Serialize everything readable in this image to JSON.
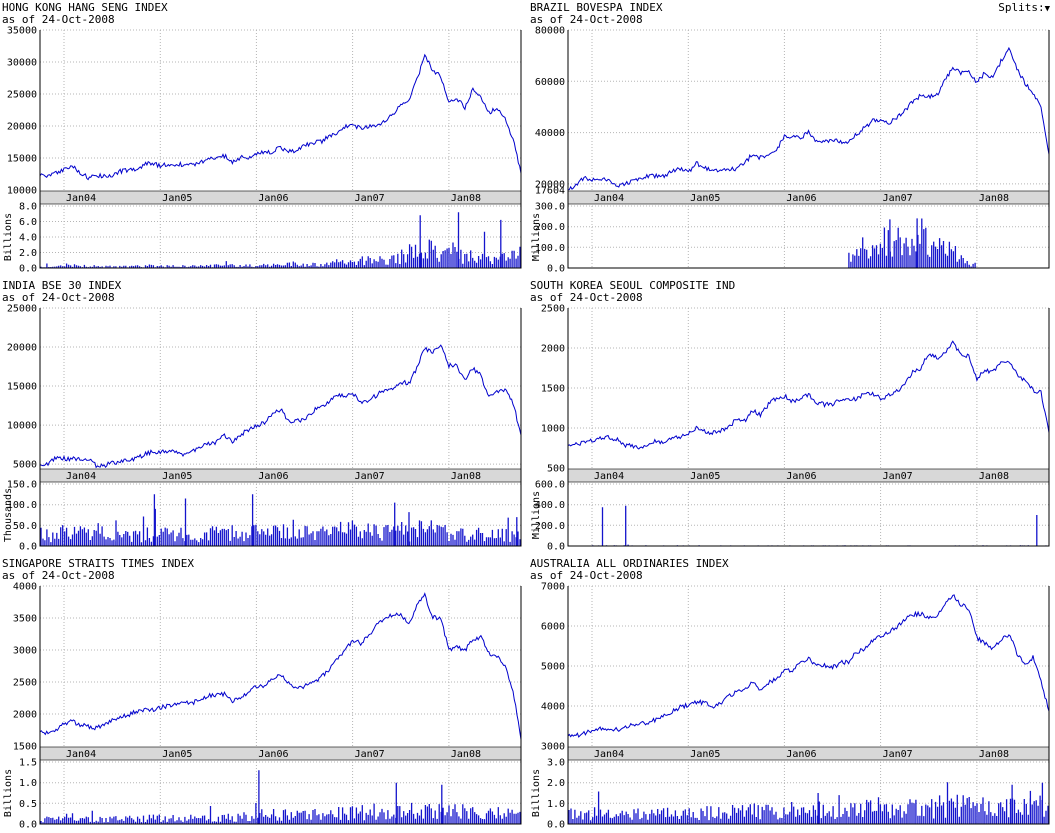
{
  "page": {
    "splits_label": "Splits:",
    "splits_arrow": "▼"
  },
  "colors": {
    "line": "#0000cc",
    "volume": "#1414cc",
    "grid": "#b5b5b5",
    "band": "#d8d8d8",
    "axis": "#000000"
  },
  "chart_data": [
    {
      "type": "line",
      "title": "HONG KONG HANG SENG INDEX",
      "as_of": "as of 24-Oct-2008",
      "x_ticks": [
        "Jan04",
        "Jan05",
        "Jan06",
        "Jan07",
        "Jan08"
      ],
      "tick_months": [
        3,
        15,
        27,
        39,
        51
      ],
      "seed": 11,
      "price": {
        "ylim": [
          10000,
          35000
        ],
        "yticks": [
          10000,
          15000,
          20000,
          25000,
          30000,
          35000
        ],
        "ytick_labels": [
          "10000",
          "15000",
          "20000",
          "25000",
          "30000",
          "35000"
        ],
        "monthly": [
          12200,
          12350,
          12600,
          13300,
          13900,
          12700,
          11900,
          12150,
          12300,
          12200,
          12900,
          13100,
          13100,
          13950,
          14250,
          13700,
          14150,
          13900,
          14050,
          13900,
          14200,
          14900,
          15000,
          15350,
          14400,
          15100,
          14900,
          15700,
          15900,
          15850,
          16700,
          15900,
          16300,
          16950,
          17400,
          17500,
          18300,
          18950,
          19950,
          20100,
          19600,
          19800,
          20300,
          20650,
          21800,
          23200,
          23950,
          27150,
          31000,
          28650,
          27800,
          23500,
          24350,
          22850,
          25700,
          24500,
          22100,
          22700,
          21300,
          18000,
          12600
        ]
      },
      "volume": {
        "unit": "Billions",
        "ylim": [
          0,
          8
        ],
        "yticks": [
          0,
          2,
          4,
          6,
          8
        ],
        "ytick_labels": [
          "0.0",
          "2.0",
          "4.0",
          "6.0",
          "8.0"
        ],
        "monthly": [
          0.25,
          0.3,
          0.3,
          0.45,
          0.4,
          0.35,
          0.3,
          0.25,
          0.25,
          0.22,
          0.25,
          0.3,
          0.3,
          0.35,
          0.3,
          0.3,
          0.3,
          0.3,
          0.28,
          0.3,
          0.32,
          0.4,
          0.35,
          0.45,
          0.4,
          0.4,
          0.4,
          0.55,
          0.5,
          0.5,
          0.6,
          0.7,
          0.55,
          0.55,
          0.6,
          0.65,
          0.8,
          0.9,
          1.0,
          1.1,
          1.2,
          1.1,
          1.2,
          1.4,
          1.6,
          2.0,
          2.4,
          2.8,
          3.2,
          3.0,
          2.4,
          2.6,
          2.2,
          2.4,
          2.0,
          1.8,
          1.6,
          1.9,
          1.8,
          2.2,
          2.6
        ],
        "spikes": [
          {
            "m": 47.5,
            "v": 6.8
          },
          {
            "m": 52.3,
            "v": 7.2
          },
          {
            "m": 57.6,
            "v": 6.2
          }
        ]
      }
    },
    {
      "type": "line",
      "title": "BRAZIL BOVESPA INDEX",
      "as_of": "as of 24-Oct-2008",
      "x_ticks": [
        "Jan04",
        "Jan05",
        "Jan06",
        "Jan07",
        "Jan08"
      ],
      "tick_months": [
        3,
        15,
        27,
        39,
        51
      ],
      "seed": 23,
      "price": {
        "ylim": [
          17604,
          80000
        ],
        "yticks": [
          17604,
          20000,
          40000,
          60000,
          80000
        ],
        "ytick_labels": [
          "17604",
          "20000",
          "40000",
          "60000",
          "80000"
        ],
        "monthly": [
          17700,
          19500,
          22200,
          21800,
          21100,
          22100,
          19600,
          19500,
          21100,
          22300,
          22800,
          23200,
          23000,
          25100,
          26200,
          24400,
          28100,
          26600,
          25300,
          25200,
          25500,
          26000,
          28000,
          31600,
          30200,
          31900,
          33500,
          38400,
          38600,
          37900,
          40400,
          36500,
          36600,
          37100,
          36200,
          36400,
          39300,
          41900,
          44500,
          44600,
          43900,
          45800,
          48600,
          52300,
          54400,
          54200,
          54600,
          60500,
          65300,
          63000,
          63900,
          59500,
          63500,
          60900,
          67900,
          72600,
          65000,
          59500,
          55700,
          49500,
          31500
        ]
      },
      "volume": {
        "unit": "Millions",
        "ylim": [
          0,
          300
        ],
        "yticks": [
          0,
          100,
          200,
          300
        ],
        "ytick_labels": [
          "0.0",
          "100.0",
          "200.0",
          "300.0"
        ],
        "monthly": [
          0,
          0,
          0,
          0,
          0,
          0,
          0,
          0,
          0,
          0,
          0,
          0,
          0,
          0,
          0,
          0,
          0,
          0,
          0,
          0,
          0,
          0,
          0,
          0,
          0,
          0,
          0,
          0,
          0,
          0,
          0,
          0,
          0,
          0,
          0,
          70,
          130,
          150,
          160,
          170,
          180,
          170,
          160,
          180,
          190,
          170,
          150,
          130,
          90,
          50,
          20,
          0,
          0,
          0,
          0,
          0,
          0,
          0,
          0,
          0,
          0
        ],
        "spikes": [
          {
            "m": 40.2,
            "v": 235
          },
          {
            "m": 43.6,
            "v": 240
          }
        ]
      }
    },
    {
      "type": "line",
      "title": "INDIA BSE 30 INDEX",
      "as_of": "as of 24-Oct-2008",
      "x_ticks": [
        "Jan04",
        "Jan05",
        "Jan06",
        "Jan07",
        "Jan08"
      ],
      "tick_months": [
        3,
        15,
        27,
        39,
        51
      ],
      "seed": 37,
      "price": {
        "ylim": [
          4500,
          25000
        ],
        "yticks": [
          5000,
          10000,
          15000,
          20000,
          25000
        ],
        "ytick_labels": [
          "5000",
          "10000",
          "15000",
          "20000",
          "25000"
        ],
        "monthly": [
          4900,
          5050,
          5800,
          5700,
          5670,
          5590,
          5650,
          4850,
          4800,
          5200,
          5190,
          5580,
          5670,
          6230,
          6600,
          6600,
          6710,
          6490,
          6150,
          6700,
          7190,
          7630,
          7800,
          8630,
          7890,
          8790,
          9400,
          9920,
          10370,
          11280,
          12040,
          10400,
          10610,
          10740,
          11700,
          12450,
          12900,
          13700,
          13790,
          14090,
          12940,
          13070,
          13870,
          14540,
          14650,
          15550,
          15320,
          17290,
          19840,
          19360,
          20290,
          17650,
          17580,
          15640,
          17290,
          16400,
          13460,
          14360,
          14560,
          12860,
          8700
        ]
      },
      "volume": {
        "unit": "Thousands",
        "ylim": [
          0,
          150
        ],
        "yticks": [
          0,
          50,
          100,
          150
        ],
        "ytick_labels": [
          "0.0",
          "50.0",
          "100.0",
          "150.0"
        ],
        "monthly": [
          35,
          30,
          40,
          45,
          40,
          35,
          30,
          45,
          35,
          30,
          28,
          30,
          30,
          35,
          38,
          40,
          38,
          35,
          30,
          32,
          35,
          38,
          36,
          40,
          35,
          38,
          40,
          45,
          48,
          50,
          55,
          60,
          40,
          38,
          42,
          45,
          45,
          48,
          45,
          50,
          45,
          42,
          40,
          42,
          40,
          45,
          42,
          48,
          50,
          45,
          42,
          45,
          40,
          38,
          36,
          34,
          32,
          35,
          33,
          35,
          55
        ],
        "spikes": [
          {
            "m": 9.4,
            "v": 62
          },
          {
            "m": 14.2,
            "v": 125
          },
          {
            "m": 18.1,
            "v": 115
          },
          {
            "m": 26.5,
            "v": 125
          },
          {
            "m": 44.3,
            "v": 105
          },
          {
            "m": 46.1,
            "v": 82
          },
          {
            "m": 59.6,
            "v": 70
          }
        ]
      }
    },
    {
      "type": "line",
      "title": "SOUTH KOREA SEOUL COMPOSITE IND",
      "as_of": "as of 24-Oct-2008",
      "x_ticks": [
        "Jan04",
        "Jan05",
        "Jan06",
        "Jan07",
        "Jan08"
      ],
      "tick_months": [
        3,
        15,
        27,
        39,
        51
      ],
      "seed": 53,
      "price": {
        "ylim": [
          500,
          2500
        ],
        "yticks": [
          500,
          1000,
          1500,
          2000,
          2500
        ],
        "ytick_labels": [
          "500",
          "1000",
          "1500",
          "2000",
          "2500"
        ],
        "monthly": [
          780,
          795,
          810,
          848,
          880,
          880,
          862,
          790,
          785,
          735,
          800,
          835,
          830,
          880,
          895,
          932,
          1011,
          965,
          942,
          970,
          1008,
          1111,
          1083,
          1221,
          1158,
          1297,
          1379,
          1399,
          1330,
          1359,
          1419,
          1317,
          1295,
          1298,
          1352,
          1371,
          1364,
          1432,
          1434,
          1360,
          1417,
          1452,
          1542,
          1700,
          1743,
          1933,
          1873,
          1946,
          2064,
          1906,
          1897,
          1624,
          1711,
          1704,
          1825,
          1852,
          1675,
          1594,
          1474,
          1448,
          940
        ]
      },
      "volume": {
        "unit": "Millions",
        "ylim": [
          0,
          600
        ],
        "yticks": [
          0,
          200,
          400,
          600
        ],
        "ytick_labels": [
          "0.0",
          "200.0",
          "400.0",
          "600.0"
        ],
        "monthly": [
          5,
          5,
          5,
          5,
          5,
          5,
          5,
          5,
          5,
          5,
          5,
          5,
          5,
          5,
          5,
          5,
          5,
          5,
          5,
          5,
          5,
          5,
          5,
          5,
          5,
          5,
          5,
          5,
          5,
          5,
          5,
          5,
          5,
          5,
          5,
          5,
          5,
          5,
          5,
          5,
          5,
          5,
          5,
          5,
          5,
          5,
          5,
          5,
          5,
          5,
          5,
          5,
          5,
          5,
          5,
          5,
          5,
          5,
          5,
          5,
          5
        ],
        "spikes": [
          {
            "m": 4.2,
            "v": 375
          },
          {
            "m": 7.1,
            "v": 390
          },
          {
            "m": 58.6,
            "v": 300
          }
        ]
      }
    },
    {
      "type": "line",
      "title": "SINGAPORE STRAITS TIMES INDEX",
      "as_of": "as of 24-Oct-2008",
      "x_ticks": [
        "Jan04",
        "Jan05",
        "Jan06",
        "Jan07",
        "Jan08"
      ],
      "tick_months": [
        3,
        15,
        27,
        39,
        51
      ],
      "seed": 71,
      "price": {
        "ylim": [
          1500,
          4000
        ],
        "yticks": [
          1500,
          2000,
          2500,
          3000,
          3500,
          4000
        ],
        "ytick_labels": [
          "1500",
          "2000",
          "2500",
          "3000",
          "3500",
          "4000"
        ],
        "monthly": [
          1720,
          1705,
          1765,
          1850,
          1880,
          1830,
          1800,
          1780,
          1840,
          1900,
          1950,
          1980,
          2050,
          2060,
          2070,
          2100,
          2130,
          2150,
          2160,
          2180,
          2210,
          2300,
          2290,
          2310,
          2210,
          2260,
          2350,
          2420,
          2450,
          2530,
          2610,
          2480,
          2400,
          2440,
          2480,
          2570,
          2690,
          2850,
          2990,
          3150,
          3110,
          3230,
          3400,
          3500,
          3550,
          3550,
          3390,
          3700,
          3850,
          3520,
          3480,
          3000,
          3050,
          3000,
          3150,
          3200,
          2950,
          2900,
          2740,
          2360,
          1600
        ]
      },
      "volume": {
        "unit": "Billions",
        "ylim": [
          0,
          1.5
        ],
        "yticks": [
          0,
          0.5,
          1.0,
          1.5
        ],
        "ytick_labels": [
          "0.0",
          "0.5",
          "1.0",
          "1.5"
        ],
        "monthly": [
          0.15,
          0.14,
          0.16,
          0.2,
          0.18,
          0.16,
          0.15,
          0.14,
          0.15,
          0.16,
          0.15,
          0.16,
          0.17,
          0.18,
          0.18,
          0.19,
          0.18,
          0.19,
          0.18,
          0.19,
          0.2,
          0.22,
          0.2,
          0.22,
          0.2,
          0.22,
          0.24,
          0.28,
          0.26,
          0.28,
          0.3,
          0.32,
          0.26,
          0.26,
          0.28,
          0.3,
          0.32,
          0.34,
          0.36,
          0.38,
          0.36,
          0.38,
          0.4,
          0.42,
          0.4,
          0.42,
          0.4,
          0.44,
          0.46,
          0.42,
          0.38,
          0.42,
          0.38,
          0.36,
          0.34,
          0.32,
          0.3,
          0.32,
          0.3,
          0.34,
          0.3
        ],
        "spikes": [
          {
            "m": 27.3,
            "v": 1.3
          },
          {
            "m": 44.5,
            "v": 1.0
          },
          {
            "m": 50.2,
            "v": 0.95
          }
        ]
      }
    },
    {
      "type": "line",
      "title": "AUSTRALIA ALL ORDINARIES INDEX",
      "as_of": "as of 24-Oct-2008",
      "x_ticks": [
        "Jan04",
        "Jan05",
        "Jan06",
        "Jan07",
        "Jan08"
      ],
      "tick_months": [
        3,
        15,
        27,
        39,
        51
      ],
      "seed": 89,
      "price": {
        "ylim": [
          3000,
          7000
        ],
        "yticks": [
          3000,
          4000,
          5000,
          6000,
          7000
        ],
        "ytick_labels": [
          "3000",
          "4000",
          "5000",
          "6000",
          "7000"
        ],
        "monthly": [
          3250,
          3270,
          3310,
          3370,
          3420,
          3415,
          3410,
          3430,
          3530,
          3560,
          3560,
          3670,
          3770,
          3870,
          3970,
          4020,
          4090,
          4090,
          3940,
          4070,
          4230,
          4340,
          4410,
          4570,
          4400,
          4570,
          4700,
          4880,
          4880,
          5090,
          5200,
          5020,
          5030,
          4960,
          5080,
          5110,
          5350,
          5440,
          5640,
          5740,
          5820,
          5980,
          6160,
          6290,
          6310,
          6180,
          6250,
          6580,
          6780,
          6540,
          6420,
          5700,
          5570,
          5410,
          5650,
          5800,
          5330,
          5050,
          5210,
          4630,
          3870
        ]
      },
      "volume": {
        "unit": "Billions",
        "ylim": [
          0,
          3
        ],
        "yticks": [
          0,
          1,
          2,
          3
        ],
        "ytick_labels": [
          "0.0",
          "1.0",
          "2.0",
          "3.0"
        ],
        "monthly": [
          0.6,
          0.62,
          0.6,
          0.65,
          0.62,
          0.65,
          0.6,
          0.62,
          0.65,
          0.63,
          0.6,
          0.65,
          0.68,
          0.7,
          0.68,
          0.7,
          0.72,
          0.7,
          0.72,
          0.74,
          0.72,
          0.74,
          0.76,
          0.78,
          0.74,
          0.78,
          0.8,
          0.82,
          0.8,
          0.85,
          0.85,
          0.9,
          0.82,
          0.8,
          0.85,
          0.88,
          0.85,
          0.9,
          0.92,
          0.95,
          0.92,
          0.95,
          1.0,
          1.05,
          1.0,
          1.05,
          1.1,
          1.05,
          1.1,
          1.15,
          1.05,
          1.1,
          1.05,
          1.0,
          0.95,
          0.95,
          1.0,
          1.1,
          1.05,
          1.15,
          1.0
        ],
        "spikes": [
          {
            "m": 31.2,
            "v": 1.5
          },
          {
            "m": 55.5,
            "v": 1.9
          },
          {
            "m": 57.8,
            "v": 1.6
          },
          {
            "m": 59.3,
            "v": 2.0
          }
        ]
      }
    }
  ]
}
